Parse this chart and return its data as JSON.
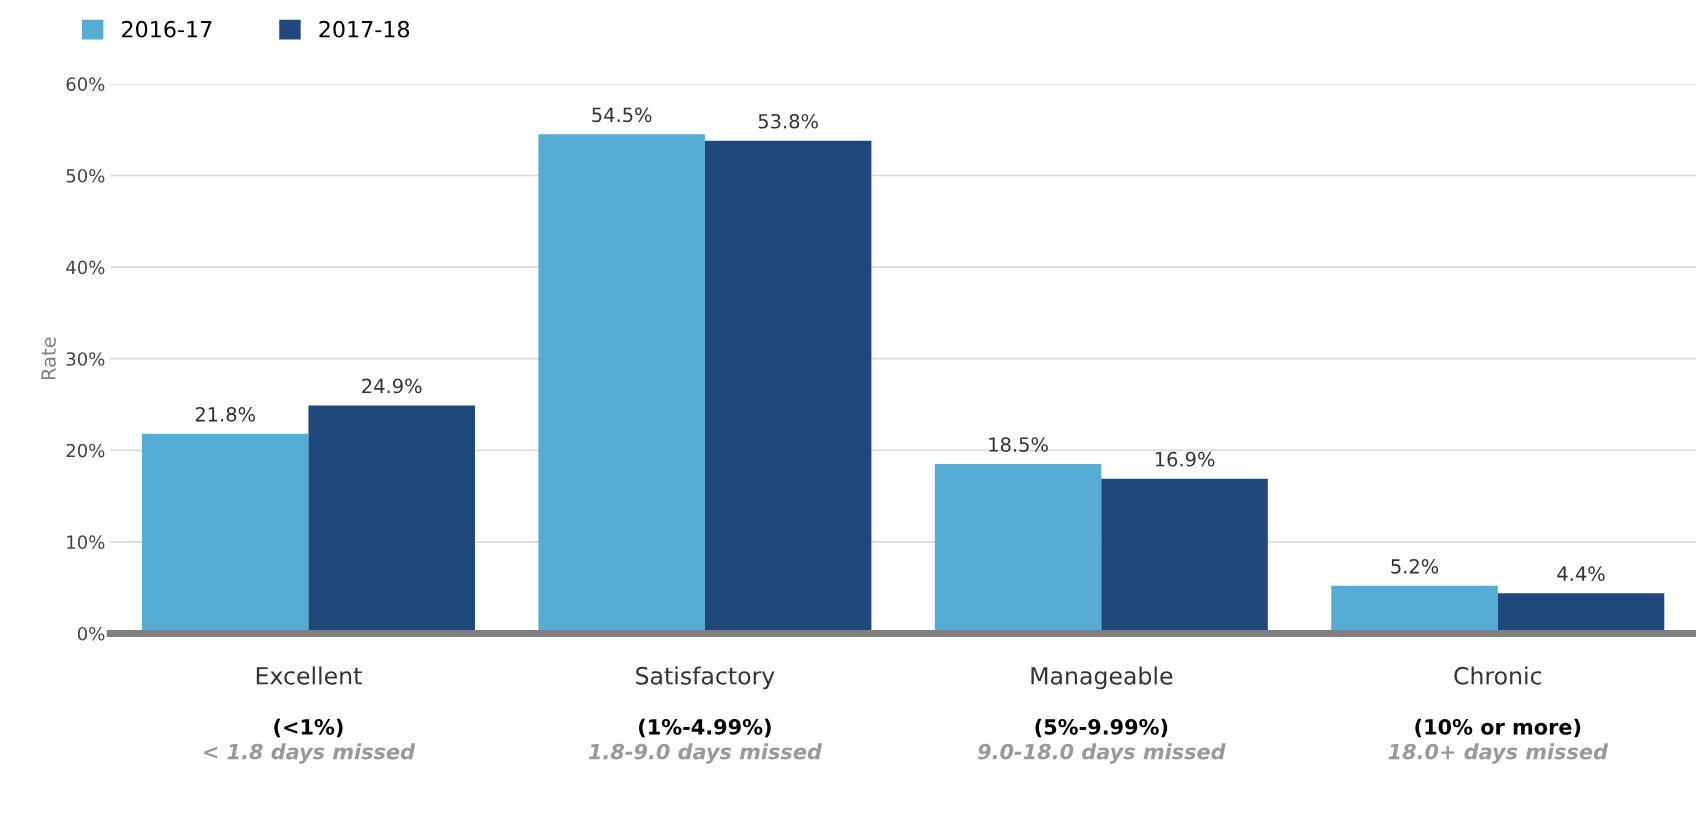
{
  "chart_data": {
    "type": "bar",
    "ylabel": "Rate",
    "categories": [
      "Excellent\n\n(<1%)\n< 1.8 days missed",
      "Satisfactory\n\n(1%-4.99%)\n1.8-9.0 days missed",
      "Manageable\n\n(5%-9.99%)\n9.0-18.0 days missed",
      "Chronic\n\n(10% or more)\n18.0+ days missed"
    ],
    "series": [
      {
        "name": "2016-17",
        "color": "#55acd4",
        "values": [
          21.8,
          54.5,
          18.5,
          5.2
        ],
        "value_labels": [
          "21.8%",
          "54.5%",
          "18.5%",
          "5.2%"
        ]
      },
      {
        "name": "2017-18",
        "color": "#1f487c",
        "values": [
          24.9,
          53.8,
          16.9,
          4.4
        ],
        "value_labels": [
          "24.9%",
          "53.8%",
          "16.9%",
          "4.4%"
        ]
      }
    ],
    "ylim": [
      0,
      60
    ],
    "yticks": [
      {
        "value": 0,
        "label": "0%"
      },
      {
        "value": 10,
        "label": "10%"
      },
      {
        "value": 20,
        "label": "20%"
      },
      {
        "value": 30,
        "label": "30%"
      },
      {
        "value": 40,
        "label": "40%"
      },
      {
        "value": 50,
        "label": "50%"
      },
      {
        "value": 60,
        "label": "60%"
      }
    ],
    "grid": "y",
    "legend": "top left"
  }
}
